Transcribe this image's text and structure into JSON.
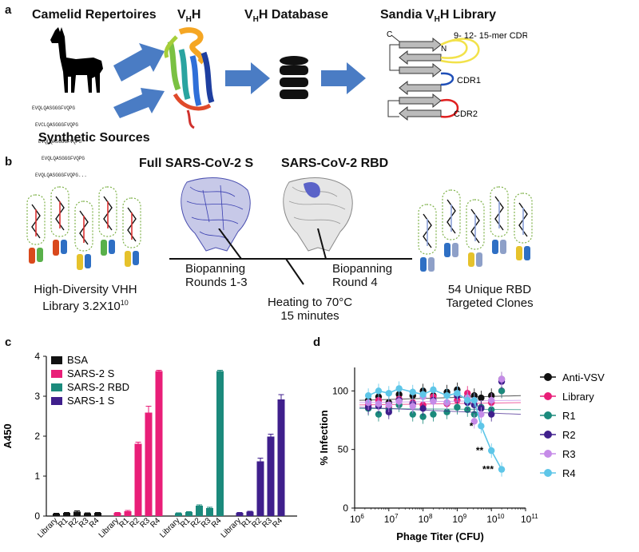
{
  "panel_a": {
    "label": "a",
    "titles": {
      "camelid": "Camelid Repertoires",
      "vhh": "VHH",
      "database": "VHH Database",
      "library": "Sandia VHH Library"
    },
    "sequences": [
      "EVQLQASGGGFVQPG",
      "EVCLQASGGGFVQPG",
      "EVQLQASGGGFVQPG",
      "EVQLQASGGGFVQPG",
      "EVQLQASGGGFVQPG..."
    ],
    "synthetic": "Synthetic Sources",
    "labels": {
      "c_term": "C",
      "n_term": "N",
      "cdr3": "9- 12- 15-mer CDR3",
      "cdr1": "CDR1",
      "cdr2": "CDR2"
    }
  },
  "panel_b": {
    "label": "b",
    "full_s": "Full SARS-CoV-2 S",
    "rbd": "SARS-CoV-2 RBD",
    "library_line1": "High-Diversity VHH",
    "library_line2": "Library 3.2X10",
    "library_exp": "10",
    "biopanning1_line1": "Biopanning",
    "biopanning1_line2": "Rounds 1-3",
    "biopanning2_line1": "Biopanning",
    "biopanning2_line2": "Round 4",
    "heating_line1": "Heating to 70°C",
    "heating_line2": "15 minutes",
    "clones_line1": "54 Unique RBD",
    "clones_line2": "Targeted Clones"
  },
  "chart_data": [
    {
      "panel": "c",
      "type": "bar",
      "ylabel": "A450",
      "ylim": [
        0,
        4
      ],
      "yticks": [
        0,
        1,
        2,
        3,
        4
      ],
      "categories": [
        "Library",
        "R1",
        "R2",
        "R3",
        "R4"
      ],
      "legend": "top-left",
      "series": [
        {
          "name": "BSA",
          "color": "#111111",
          "values": [
            0.06,
            0.08,
            0.11,
            0.07,
            0.08
          ],
          "errors": [
            0.01,
            0.01,
            0.02,
            0.01,
            0.01
          ]
        },
        {
          "name": "SARS-2 S",
          "color": "#e91e78",
          "values": [
            0.08,
            0.12,
            1.81,
            2.59,
            3.63
          ],
          "errors": [
            0.01,
            0.02,
            0.04,
            0.16,
            0.02
          ]
        },
        {
          "name": "SARS-2 RBD",
          "color": "#1b8a7c",
          "values": [
            0.07,
            0.1,
            0.26,
            0.2,
            3.63
          ],
          "errors": [
            0.01,
            0.01,
            0.02,
            0.02,
            0.02
          ]
        },
        {
          "name": "SARS-1 S",
          "color": "#3f1f8c",
          "values": [
            0.08,
            0.11,
            1.37,
            1.99,
            2.92
          ],
          "errors": [
            0.01,
            0.01,
            0.08,
            0.06,
            0.12
          ]
        }
      ]
    },
    {
      "panel": "d",
      "type": "scatter",
      "xlabel": "Phage Titer (CFU)",
      "ylabel": "% Infection",
      "xscale": "log",
      "xlim_exp": [
        6,
        11
      ],
      "xticks_exp": [
        6,
        7,
        8,
        9,
        10,
        11
      ],
      "ylim": [
        0,
        120
      ],
      "yticks": [
        0,
        50,
        100
      ],
      "legend": "right",
      "x_exp": [
        6.4,
        6.7,
        7.0,
        7.3,
        7.7,
        8.0,
        8.3,
        8.7,
        9.0,
        9.3,
        9.5,
        9.7,
        10.0,
        10.3
      ],
      "series": [
        {
          "name": "Anti-VSV",
          "color": "#111111",
          "values": [
            92,
            95,
            90,
            97,
            96,
            100,
            96,
            99,
            101,
            95,
            96,
            94,
            96,
            110
          ],
          "connect": false
        },
        {
          "name": "Library",
          "color": "#e91e78",
          "values": [
            88,
            92,
            86,
            93,
            90,
            88,
            95,
            89,
            92,
            98,
            92,
            86,
            90,
            100
          ],
          "connect": false
        },
        {
          "name": "R1",
          "color": "#1b8a7c",
          "values": [
            85,
            80,
            84,
            88,
            80,
            78,
            80,
            82,
            86,
            84,
            80,
            86,
            84,
            100
          ],
          "connect": false
        },
        {
          "name": "R2",
          "color": "#3f1f8c",
          "values": [
            86,
            87,
            82,
            92,
            89,
            85,
            92,
            90,
            96,
            90,
            88,
            85,
            80,
            108
          ],
          "connect": false
        },
        {
          "name": "R3",
          "color": "#c58be8",
          "values": [
            90,
            89,
            88,
            91,
            87,
            95,
            91,
            90,
            98,
            94,
            74,
            80,
            92,
            110
          ],
          "connect": false
        },
        {
          "name": "R4",
          "color": "#5ec6e8",
          "values": [
            96,
            100,
            98,
            102,
            99,
            97,
            101,
            96,
            98,
            92,
            92,
            70,
            49,
            33
          ],
          "connect": true
        }
      ],
      "annotations": [
        "*",
        "**",
        "***"
      ]
    }
  ],
  "panel_c": {
    "label": "c"
  },
  "panel_d": {
    "label": "d"
  }
}
